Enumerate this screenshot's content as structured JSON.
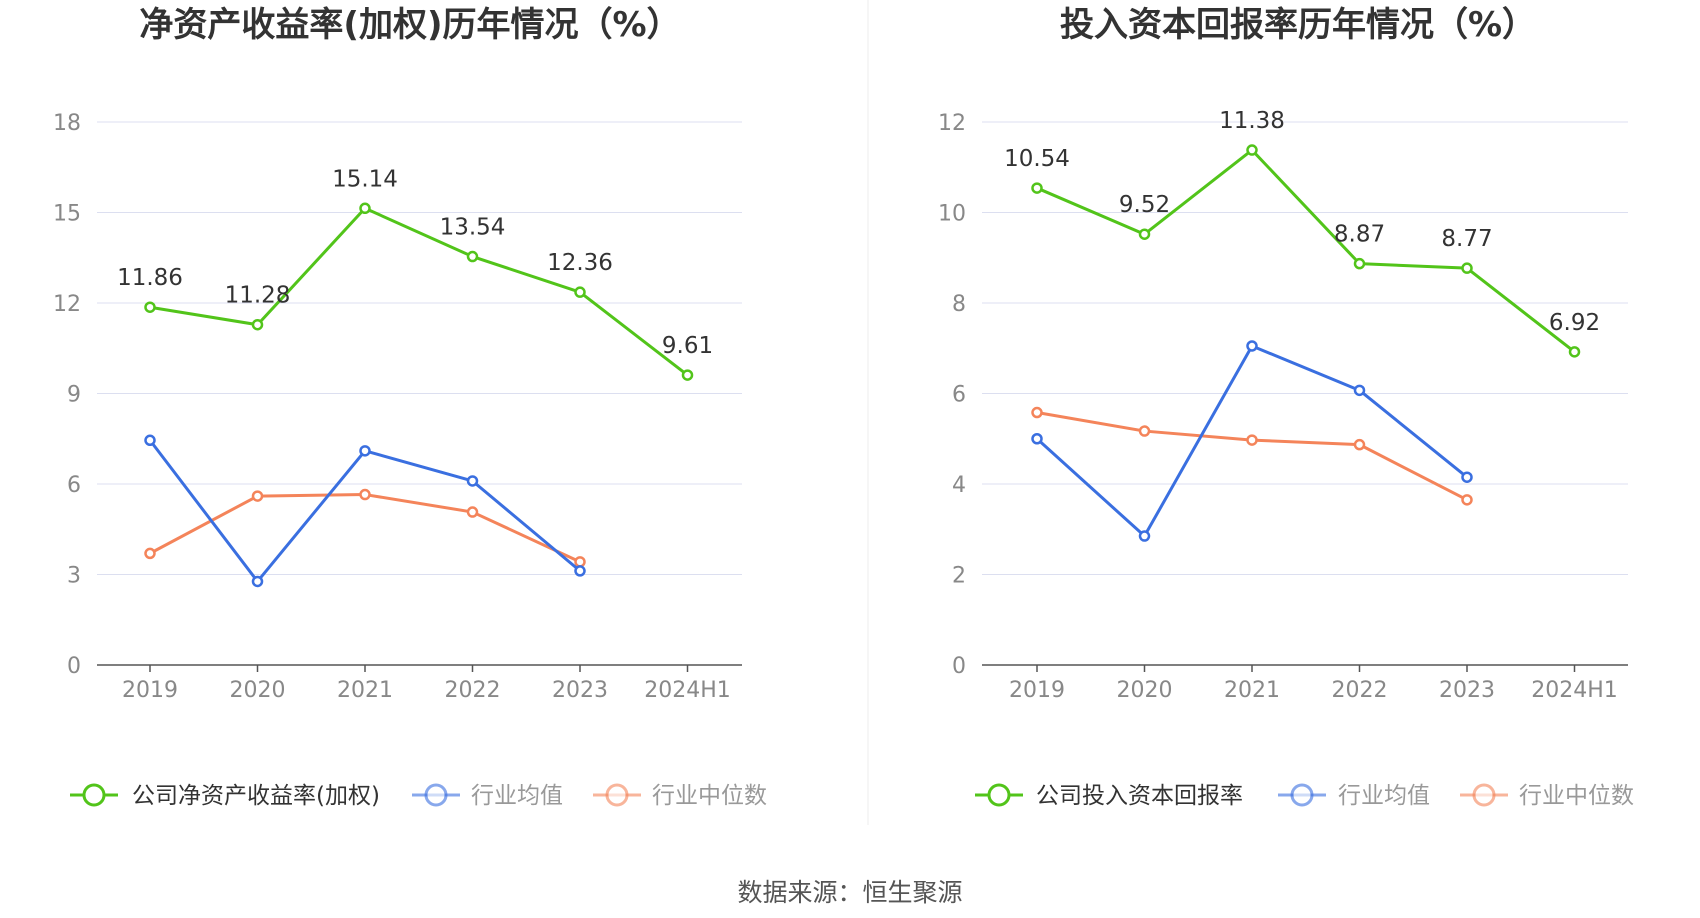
{
  "source": "数据来源：恒生聚源",
  "chart_data": [
    {
      "type": "line",
      "title": "净资产收益率(加权)历年情况（%）",
      "categories": [
        "2019",
        "2020",
        "2021",
        "2022",
        "2023",
        "2024H1"
      ],
      "y_ticks": [
        "0",
        "3",
        "6",
        "9",
        "12",
        "15",
        "18"
      ],
      "ylim": [
        0,
        18
      ],
      "grid": true,
      "legend_position": "bottom",
      "series": [
        {
          "name": "公司净资产收益率(加权)",
          "color": "#52c41a",
          "values": [
            11.86,
            11.28,
            15.14,
            13.54,
            12.36,
            9.61
          ],
          "labels": [
            "11.86",
            "11.28",
            "15.14",
            "13.54",
            "12.36",
            "9.61"
          ]
        },
        {
          "name": "行业均值",
          "color": "#3a6fe0",
          "values": [
            7.45,
            2.77,
            7.1,
            6.1,
            3.12,
            null
          ]
        },
        {
          "name": "行业中位数",
          "color": "#f4845a",
          "values": [
            3.7,
            5.6,
            5.65,
            5.07,
            3.42,
            null
          ]
        }
      ]
    },
    {
      "type": "line",
      "title": "投入资本回报率历年情况（%）",
      "categories": [
        "2019",
        "2020",
        "2021",
        "2022",
        "2023",
        "2024H1"
      ],
      "y_ticks": [
        "0",
        "2",
        "4",
        "6",
        "8",
        "10",
        "12"
      ],
      "ylim": [
        0,
        12
      ],
      "grid": true,
      "legend_position": "bottom",
      "series": [
        {
          "name": "公司投入资本回报率",
          "color": "#52c41a",
          "values": [
            10.54,
            9.52,
            11.38,
            8.87,
            8.77,
            6.92
          ],
          "labels": [
            "10.54",
            "9.52",
            "11.38",
            "8.87",
            "8.77",
            "6.92"
          ]
        },
        {
          "name": "行业均值",
          "color": "#3a6fe0",
          "values": [
            5.0,
            2.85,
            7.05,
            6.07,
            4.15,
            null
          ]
        },
        {
          "name": "行业中位数",
          "color": "#f4845a",
          "values": [
            5.58,
            5.17,
            4.97,
            4.87,
            3.65,
            null
          ]
        }
      ]
    }
  ]
}
